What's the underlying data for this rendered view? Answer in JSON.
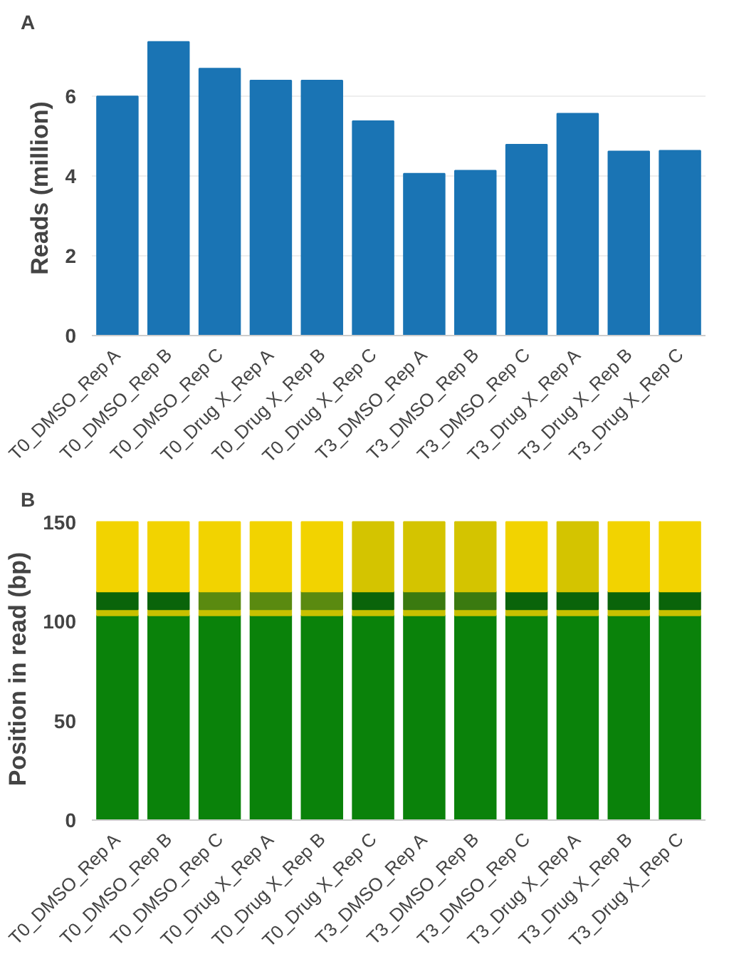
{
  "chart_data": [
    {
      "type": "bar",
      "title": "A",
      "ylabel": "Reads (million)",
      "categories": [
        "T0_DMSO_Rep A",
        "T0_DMSO_Rep B",
        "T0_DMSO_Rep C",
        "T0_Drug X_Rep A",
        "T0_Drug X_Rep B",
        "T0_Drug X_Rep C",
        "T3_DMSO_Rep A",
        "T3_DMSO_Rep B",
        "T3_DMSO_Rep C",
        "T3_Drug X_Rep A",
        "T3_Drug X_Rep B",
        "T3_Drug X_Rep C"
      ],
      "values": [
        6.0,
        7.37,
        6.7,
        6.4,
        6.4,
        5.38,
        4.06,
        4.14,
        4.79,
        5.57,
        4.62,
        4.64
      ],
      "color": "#1a74b4",
      "ylim": [
        0,
        7.4
      ],
      "yticks": [
        0,
        2,
        4,
        6
      ],
      "grid": "y"
    },
    {
      "type": "bar",
      "stacked": true,
      "title": "B",
      "ylabel": "Position in read (bp)",
      "categories": [
        "T0_DMSO_Rep A",
        "T0_DMSO_Rep B",
        "T0_DMSO_Rep C",
        "T0_Drug X_Rep A",
        "T0_Drug X_Rep B",
        "T0_Drug X_Rep C",
        "T3_DMSO_Rep A",
        "T3_DMSO_Rep B",
        "T3_DMSO_Rep C",
        "T3_Drug X_Rep A",
        "T3_Drug X_Rep B",
        "T3_Drug X_Rep C"
      ],
      "series": [
        {
          "colors": [
            "#0a820a",
            "#0a820a",
            "#0a820a",
            "#0a820a",
            "#0a820a",
            "#0a820a",
            "#0a820a",
            "#0a820a",
            "#0a820a",
            "#0a820a",
            "#0a820a",
            "#0a820a"
          ],
          "values": [
            103,
            103,
            103,
            103,
            103,
            103,
            103,
            103,
            103,
            103,
            103,
            103
          ]
        },
        {
          "colors": [
            "#c8c000",
            "#c8c000",
            "#c8c000",
            "#c8c000",
            "#c8c000",
            "#c8c000",
            "#c8c000",
            "#c8c000",
            "#c8c000",
            "#c8c000",
            "#c8c000",
            "#c8c000"
          ],
          "values": [
            3,
            3,
            3,
            3,
            3,
            3,
            3,
            3,
            3,
            3,
            3,
            3
          ]
        },
        {
          "colors": [
            "#0a640a",
            "#0a640a",
            "#5a8a10",
            "#5a8a10",
            "#5a8a10",
            "#0a640a",
            "#3a7a10",
            "#3a7a10",
            "#0a640a",
            "#0a640a",
            "#0a640a",
            "#0a640a"
          ],
          "values": [
            9,
            9,
            9,
            9,
            9,
            9,
            9,
            9,
            9,
            9,
            9,
            9
          ]
        },
        {
          "colors": [
            "#f2d300",
            "#f2d300",
            "#f2d300",
            "#f2d300",
            "#f2d300",
            "#d4c400",
            "#d4c400",
            "#d4c400",
            "#f2d300",
            "#d4c400",
            "#f2d300",
            "#f2d300"
          ],
          "values": [
            35,
            35,
            35,
            35,
            35,
            35,
            35,
            35,
            35,
            35,
            35,
            35
          ]
        }
      ],
      "ylim": [
        0,
        152
      ],
      "yticks": [
        0,
        50,
        100,
        150
      ],
      "grid": false
    }
  ]
}
